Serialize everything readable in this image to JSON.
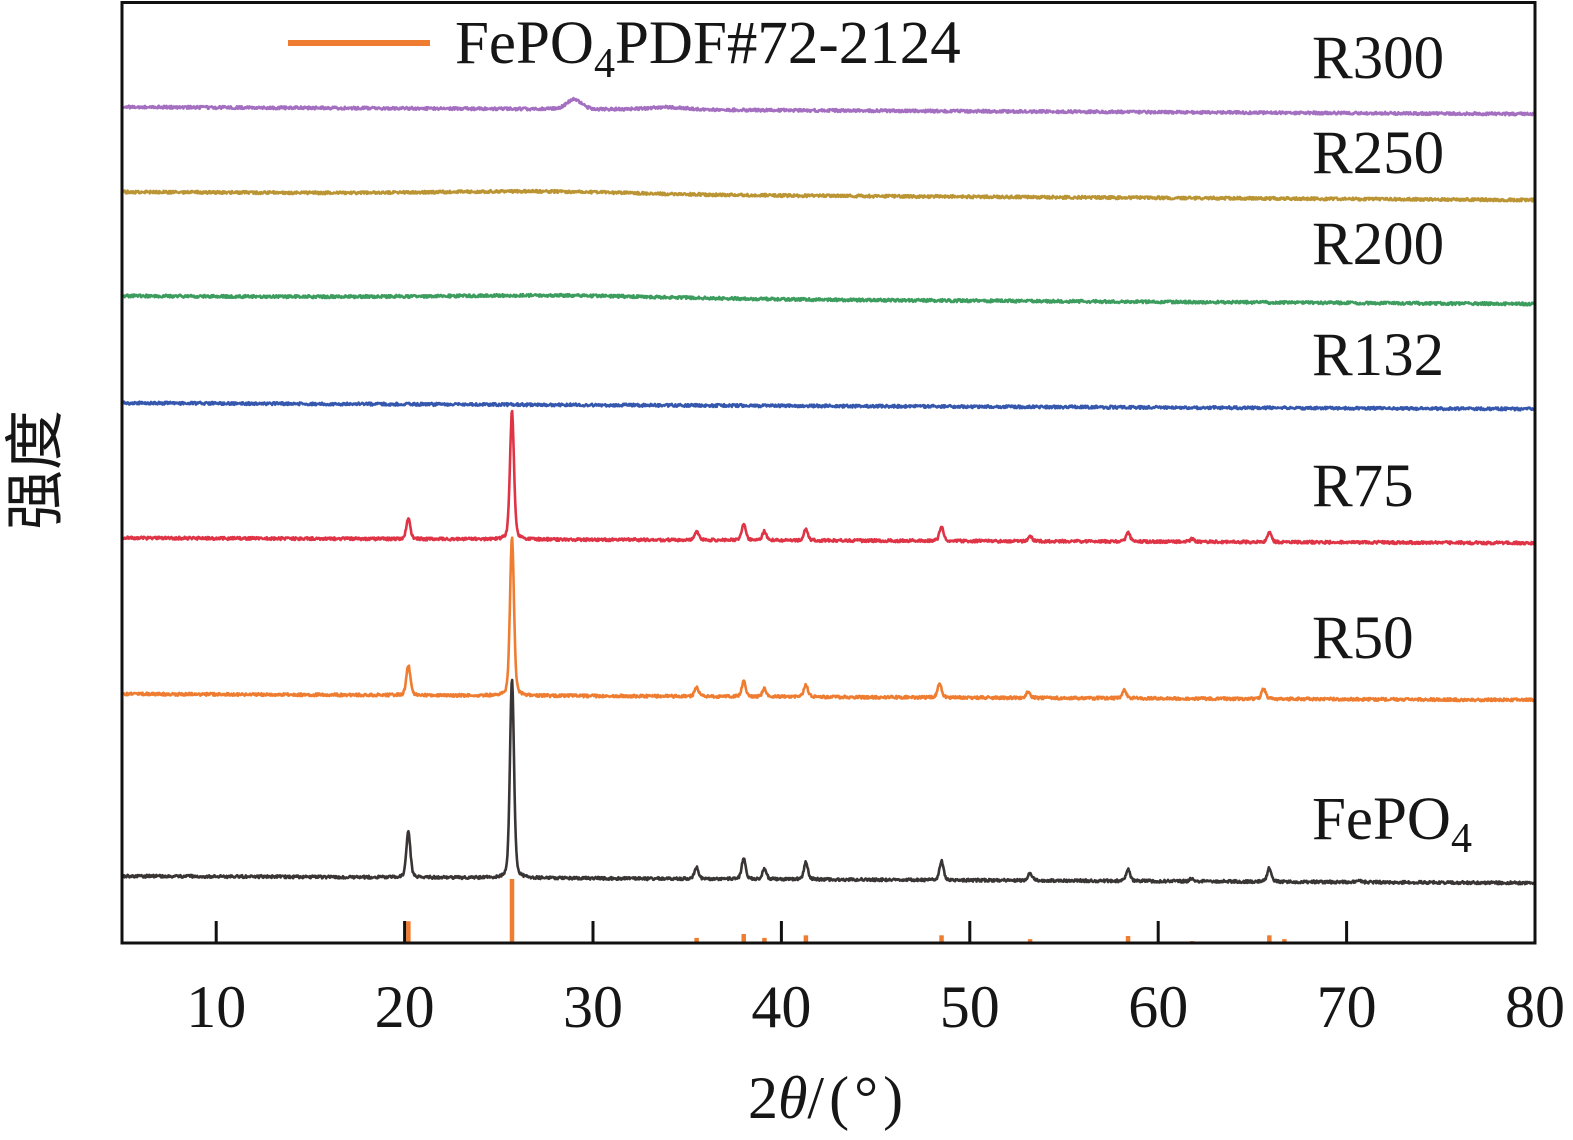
{
  "chart_data": {
    "type": "line",
    "xlabel": {
      "pre": "2",
      "var": "θ",
      "post": "/(°)"
    },
    "ylabel": "强度",
    "xlim": [
      5,
      80
    ],
    "xticks": [
      10,
      20,
      30,
      40,
      50,
      60,
      70,
      80
    ],
    "grid": false,
    "legend": {
      "placement": "top-left",
      "entries": [
        {
          "name": "FePO",
          "name_sub": "4",
          "name_tail": "PDF#72-2124",
          "color": "#ef7d31",
          "marker": "line"
        }
      ]
    },
    "series": [
      {
        "name": "R300",
        "color": "#a46fc0",
        "fwhm": 0.25,
        "peaks": [
          {
            "two_theta": 29.0,
            "intensity": 5,
            "fwhm": 0.9
          },
          {
            "two_theta": 34.0,
            "intensity": 1.2,
            "fwhm": 2.5
          }
        ]
      },
      {
        "name": "R250",
        "color": "#bb9533",
        "fwhm": 0.25,
        "peaks": [
          {
            "two_theta": 27.0,
            "intensity": 1.5,
            "fwhm": 12
          }
        ]
      },
      {
        "name": "R200",
        "color": "#3c9d5e",
        "fwhm": 0.25,
        "peaks": [
          {
            "two_theta": 28.0,
            "intensity": 1.5,
            "fwhm": 14
          }
        ]
      },
      {
        "name": "R132",
        "color": "#3558ae",
        "fwhm": 0.25,
        "peaks": []
      },
      {
        "name": "R75",
        "color": "#df3446",
        "fwhm": 0.25,
        "peaks": [
          {
            "two_theta": 20.2,
            "intensity": 10
          },
          {
            "two_theta": 25.7,
            "intensity": 64
          },
          {
            "two_theta": 35.5,
            "intensity": 4.5
          },
          {
            "two_theta": 38.0,
            "intensity": 8.5
          },
          {
            "two_theta": 39.1,
            "intensity": 4.5
          },
          {
            "two_theta": 41.3,
            "intensity": 6
          },
          {
            "two_theta": 48.5,
            "intensity": 7.5
          },
          {
            "two_theta": 53.2,
            "intensity": 2.5
          },
          {
            "two_theta": 58.4,
            "intensity": 4.5
          },
          {
            "two_theta": 61.8,
            "intensity": 1.5
          },
          {
            "two_theta": 65.9,
            "intensity": 5
          }
        ]
      },
      {
        "name": "R50",
        "color": "#ef7d31",
        "fwhm": 0.25,
        "peaks": [
          {
            "two_theta": 20.2,
            "intensity": 15
          },
          {
            "two_theta": 25.7,
            "intensity": 79
          },
          {
            "two_theta": 35.5,
            "intensity": 4.5
          },
          {
            "two_theta": 38.0,
            "intensity": 7.5
          },
          {
            "two_theta": 39.1,
            "intensity": 4
          },
          {
            "two_theta": 41.3,
            "intensity": 6
          },
          {
            "two_theta": 48.4,
            "intensity": 7
          },
          {
            "two_theta": 53.1,
            "intensity": 3
          },
          {
            "two_theta": 58.2,
            "intensity": 4
          },
          {
            "two_theta": 65.6,
            "intensity": 5
          }
        ]
      },
      {
        "name": "FePO",
        "name_sub": "4",
        "color": "#3a3535",
        "fwhm": 0.25,
        "peaks": [
          {
            "two_theta": 20.2,
            "intensity": 23
          },
          {
            "two_theta": 25.7,
            "intensity": 100
          },
          {
            "two_theta": 35.5,
            "intensity": 6
          },
          {
            "two_theta": 38.0,
            "intensity": 10.5
          },
          {
            "two_theta": 39.1,
            "intensity": 5
          },
          {
            "two_theta": 41.3,
            "intensity": 8.5
          },
          {
            "two_theta": 48.5,
            "intensity": 9.5
          },
          {
            "two_theta": 53.2,
            "intensity": 4
          },
          {
            "two_theta": 58.4,
            "intensity": 6
          },
          {
            "two_theta": 61.8,
            "intensity": 1.5
          },
          {
            "two_theta": 65.9,
            "intensity": 7
          },
          {
            "two_theta": 70.6,
            "intensity": 1.2
          }
        ]
      }
    ],
    "reference": {
      "color": "#ef7d31",
      "sticks": [
        {
          "two_theta": 20.2,
          "intensity": 34
        },
        {
          "two_theta": 25.7,
          "intensity": 100
        },
        {
          "two_theta": 35.5,
          "intensity": 8
        },
        {
          "two_theta": 38.0,
          "intensity": 14
        },
        {
          "two_theta": 39.1,
          "intensity": 8
        },
        {
          "two_theta": 41.3,
          "intensity": 12
        },
        {
          "two_theta": 48.5,
          "intensity": 12
        },
        {
          "two_theta": 53.2,
          "intensity": 6
        },
        {
          "two_theta": 58.4,
          "intensity": 11
        },
        {
          "two_theta": 61.8,
          "intensity": 3
        },
        {
          "two_theta": 65.9,
          "intensity": 12
        },
        {
          "two_theta": 66.7,
          "intensity": 6
        }
      ]
    }
  }
}
